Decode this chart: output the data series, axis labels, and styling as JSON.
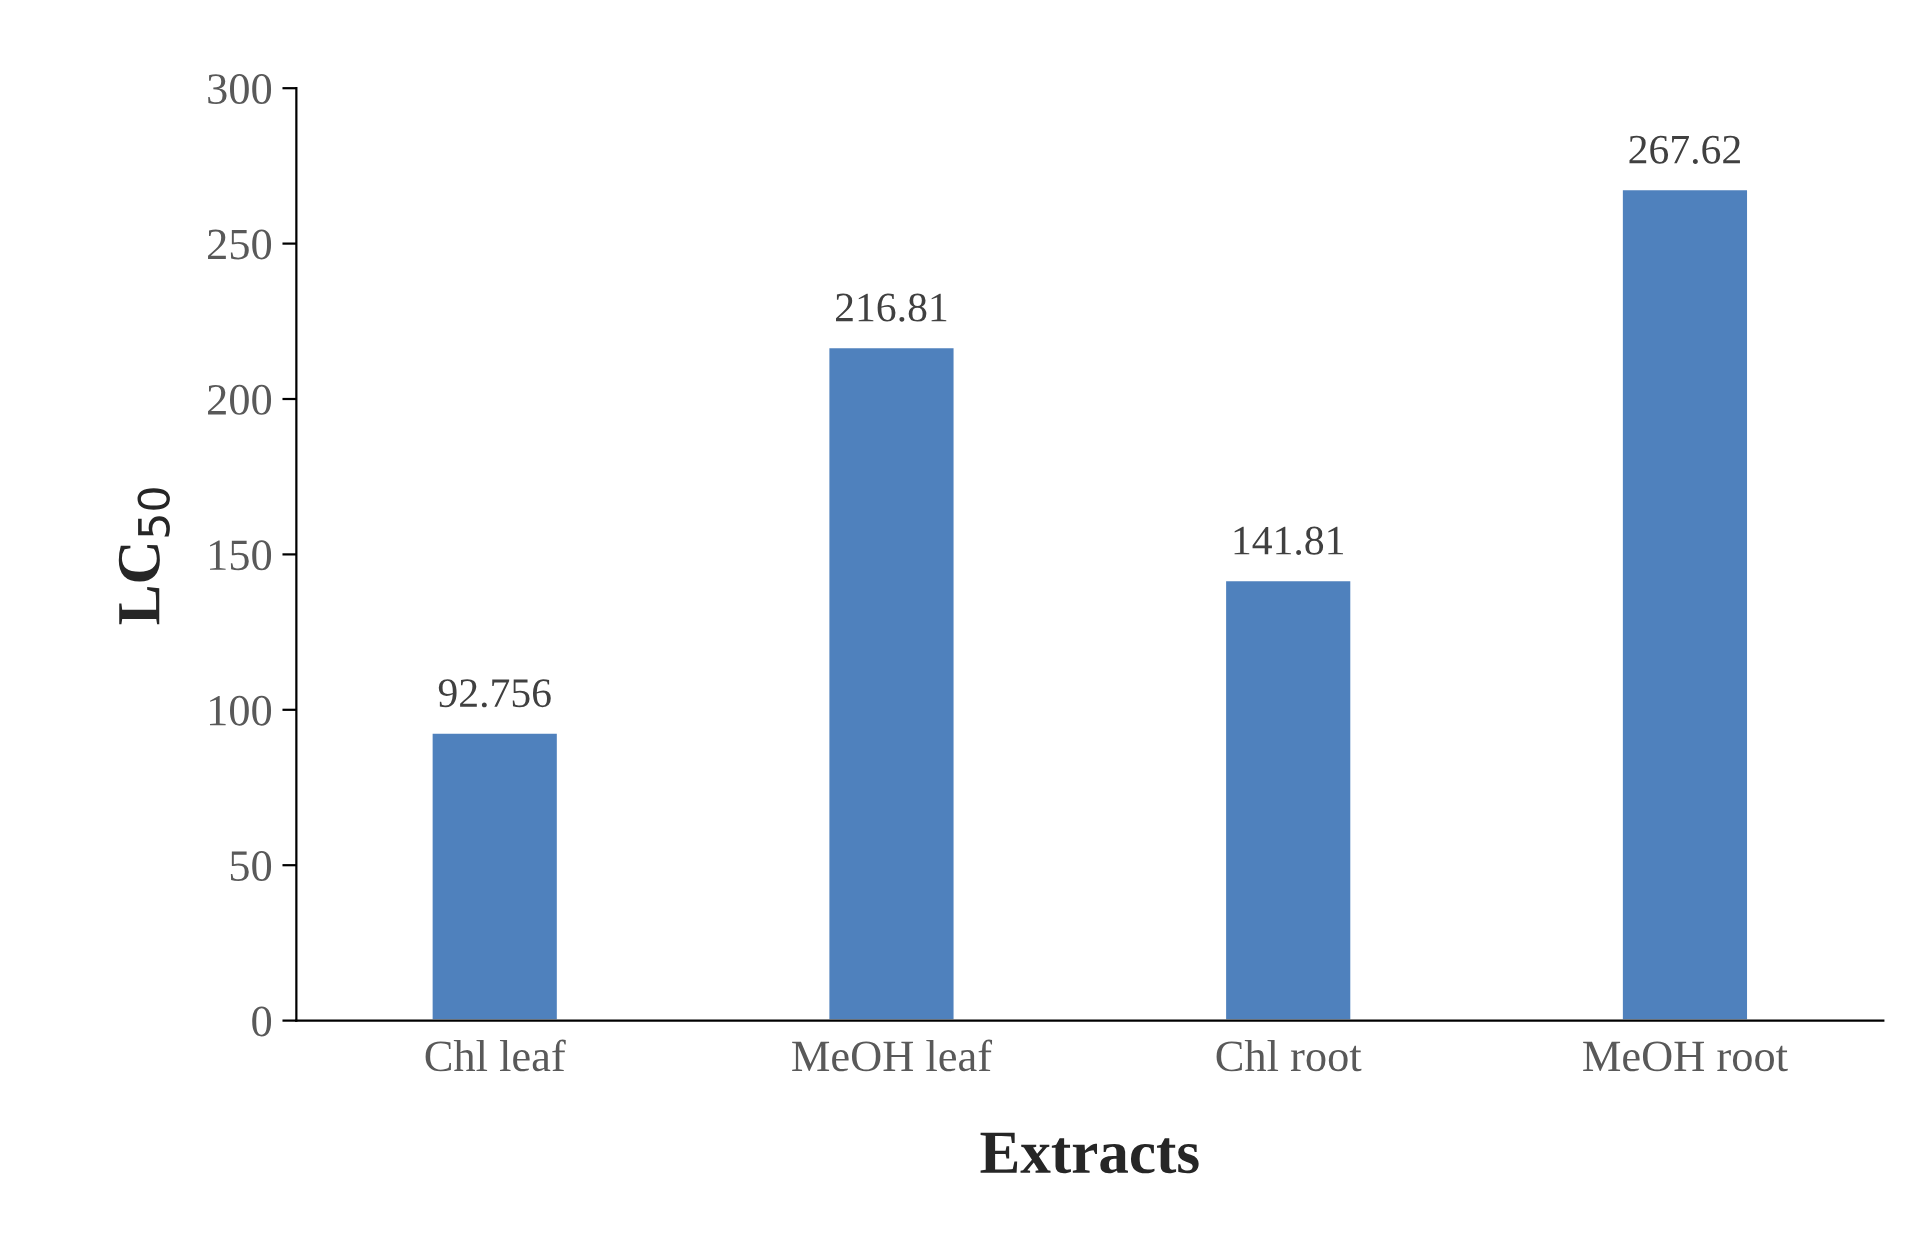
{
  "chart_data": {
    "type": "bar",
    "xlabel": "Extracts",
    "ylabel": "LC$_{50}$",
    "categories": [
      "Chl leaf",
      "MeOH leaf",
      "Chl root",
      "MeOH root"
    ],
    "values": [
      92.756,
      216.81,
      141.81,
      267.62
    ],
    "color": "#4f81bd",
    "ylim": [
      0,
      300
    ],
    "yticks": [
      0,
      50,
      100,
      150,
      200,
      250,
      300
    ],
    "data_labels": true,
    "grid": false,
    "legend": false
  }
}
